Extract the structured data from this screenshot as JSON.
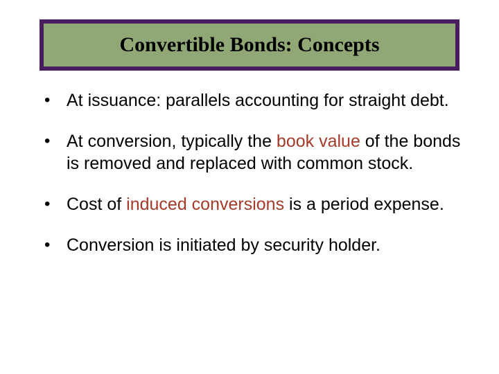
{
  "slide": {
    "title": "Convertible Bonds: Concepts",
    "title_box": {
      "background_color": "#8fa876",
      "border_color": "#4a1e5e",
      "border_width": 6
    },
    "bullets": [
      {
        "pre": "At issuance: parallels accounting for straight debt.",
        "highlight": "",
        "post": ""
      },
      {
        "pre": "At conversion, typically the ",
        "highlight": "book value",
        "post": " of the bonds is removed and replaced with common stock."
      },
      {
        "pre": "Cost of ",
        "highlight": "induced conversions",
        "post": " is a period expense."
      },
      {
        "pre": "Conversion is initiated by security holder.",
        "highlight": "",
        "post": ""
      }
    ],
    "colors": {
      "highlight": "#a63a2a",
      "text": "#000000",
      "background": "#ffffff"
    },
    "typography": {
      "title_font": "Times New Roman",
      "title_fontsize": 30,
      "title_weight": "bold",
      "body_font": "Verdana",
      "body_fontsize": 25
    }
  }
}
